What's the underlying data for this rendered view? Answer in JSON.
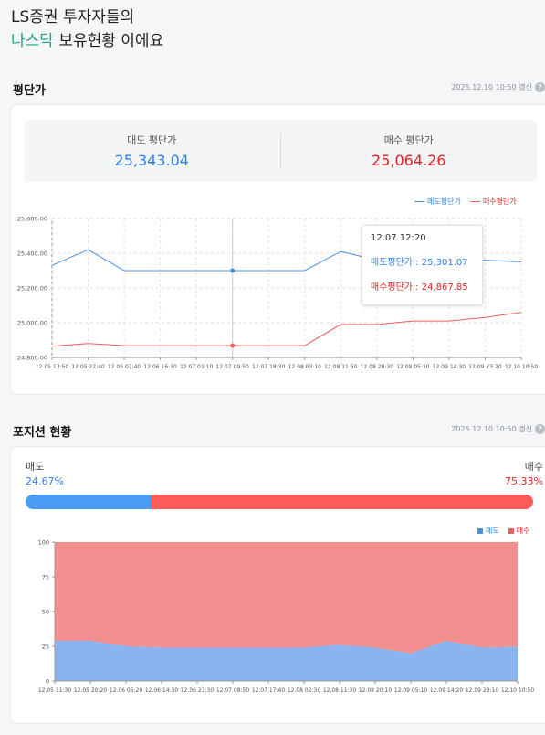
{
  "hero": {
    "line1": "LS증권 투자자들의",
    "accent": "나스닥",
    "line2_rest": " 보유현황 이에요"
  },
  "avg_section": {
    "title": "평단가",
    "updated": "2025.12.10 10:50 갱신"
  },
  "summary": {
    "sell_label": "매도 평단가",
    "sell_value": "25,343.04",
    "buy_label": "매수 평단가",
    "buy_value": "25,064.26"
  },
  "price_legend": {
    "sell": "매도평단가",
    "buy": "매수평단가"
  },
  "tooltip": {
    "time": "12.07 12:20",
    "sell": "매도평단가 : 25,301.07",
    "buy": "매수평단가 : 24,867.85"
  },
  "position_section": {
    "title": "포지션 현황",
    "updated": "2025.12.10 10:50 갱신"
  },
  "position": {
    "sell_label": "매도",
    "sell_pct": "24.67%",
    "sell_value": 24.67,
    "buy_label": "매수",
    "buy_pct": "75.33%",
    "buy_value": 75.33
  },
  "position_legend": {
    "sell": "매도",
    "buy": "매수"
  },
  "colors": {
    "sell": "#4a90e2",
    "buy": "#f25c5c",
    "sell_fill": "#8ab4f0",
    "buy_fill": "#f38f8f",
    "accent": "#1fa37c"
  },
  "help_icon": "question-circle-icon",
  "chart_data": [
    {
      "type": "line",
      "ylim": [
        24800,
        25600
      ],
      "yticks": [
        "24,800.00",
        "25,000.00",
        "25,200.00",
        "25,400.00",
        "25,600.00"
      ],
      "x": [
        "12.05 13:50",
        "12.05 22:40",
        "12.06 07:40",
        "12.06 16:30",
        "12.07 01:10",
        "12.07 09:50",
        "12.07 18:30",
        "12.08 03:10",
        "12.08 11:50",
        "12.08 20:30",
        "12.09 05:30",
        "12.09 14:30",
        "12.09 23:20",
        "12.10 10:50"
      ],
      "series": [
        {
          "name": "매도평단가",
          "color": "#4a90e2",
          "values": [
            25330,
            25420,
            25300,
            25300,
            25300,
            25300,
            25300,
            25300,
            25410,
            25360,
            25350,
            25370,
            25360,
            25350
          ]
        },
        {
          "name": "매수평단가",
          "color": "#f25c5c",
          "values": [
            24865,
            24880,
            24868,
            24868,
            24868,
            24868,
            24868,
            24868,
            24990,
            24990,
            25010,
            25010,
            25030,
            25060
          ]
        }
      ]
    },
    {
      "type": "area",
      "ylim": [
        0,
        100
      ],
      "yticks": [
        "0",
        "25",
        "50",
        "75",
        "100"
      ],
      "x": [
        "12.05 11:30",
        "12.05 20:20",
        "12.06 05:20",
        "12.06 14:30",
        "12.06 23:30",
        "12.07 08:50",
        "12.07 17:40",
        "12.08 02:30",
        "12.08 11:30",
        "12.08 20:10",
        "12.09 05:10",
        "12.09 14:20",
        "12.09 23:10",
        "12.10 10:50"
      ],
      "series": [
        {
          "name": "매도",
          "color": "#8ab4f0",
          "values": [
            29,
            29,
            25,
            24,
            24,
            24,
            24,
            24,
            26,
            24,
            20,
            29,
            24,
            24.67
          ]
        },
        {
          "name": "매수",
          "color": "#f38f8f",
          "values": [
            71,
            71,
            75,
            76,
            76,
            76,
            76,
            76,
            74,
            76,
            80,
            71,
            76,
            75.33
          ]
        }
      ]
    }
  ]
}
